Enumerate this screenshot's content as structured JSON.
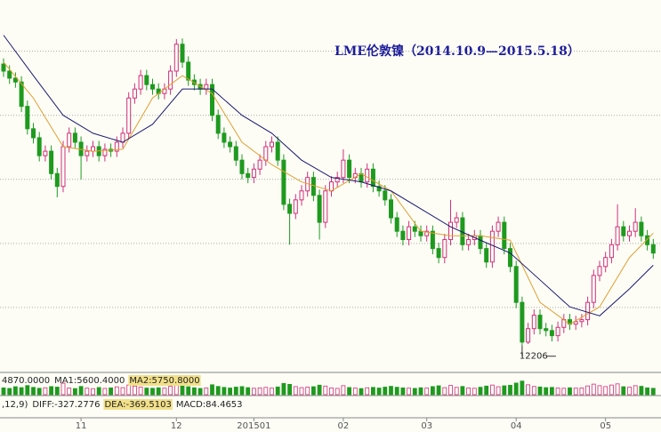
{
  "chart_data": {
    "type": "candlestick",
    "title": "LME伦敦镍（2014.10.9—2015.5.18）",
    "open": [
      16600,
      16490,
      16380,
      16320,
      15940,
      15590,
      15450,
      15170,
      15240,
      14890,
      14690,
      15310,
      15520,
      15380,
      15170,
      15240,
      15310,
      15170,
      15270,
      15240,
      15380,
      15520,
      16070,
      16210,
      16420,
      16280,
      16210,
      16140,
      16210,
      16490,
      16910,
      16630,
      16350,
      16280,
      16210,
      16280,
      15800,
      15520,
      15380,
      15310,
      15100,
      14890,
      14830,
      14960,
      15100,
      15310,
      15380,
      15100,
      14410,
      14270,
      14480,
      14620,
      14830,
      14550,
      14130,
      14620,
      14760,
      14830,
      15100,
      14830,
      14890,
      14760,
      14960,
      14690,
      14620,
      14480,
      14200,
      13990,
      13860,
      14060,
      13990,
      13920,
      13990,
      13720,
      13580,
      13860,
      14130,
      14200,
      13780,
      13860,
      13920,
      13720,
      13510,
      13990,
      14130,
      13720,
      13440,
      12880,
      12260,
      12470,
      12680,
      12470,
      12440,
      12360,
      12490,
      12610,
      12540,
      12580,
      12610,
      12880,
      13300,
      13440,
      13580,
      13780,
      14060,
      13920,
      13990,
      14130,
      13920,
      13780
    ],
    "high": [
      16690,
      16580,
      16470,
      16410,
      16030,
      15680,
      15540,
      15330,
      15330,
      14980,
      15400,
      15610,
      15610,
      15470,
      15330,
      15400,
      15400,
      15360,
      15360,
      15470,
      15610,
      16160,
      16300,
      16510,
      16510,
      16370,
      16300,
      16300,
      16580,
      16990,
      17000,
      16720,
      16440,
      16370,
      16370,
      16370,
      15890,
      15610,
      15470,
      15400,
      15190,
      14980,
      15050,
      15190,
      15400,
      15470,
      15470,
      15190,
      14500,
      14570,
      14710,
      14920,
      14920,
      14640,
      14710,
      14850,
      14920,
      15270,
      15190,
      14980,
      14980,
      15050,
      15050,
      14780,
      14710,
      14570,
      14290,
      14080,
      14150,
      14150,
      14080,
      14080,
      14080,
      13810,
      13950,
      14480,
      14290,
      14290,
      13950,
      14010,
      14010,
      13810,
      14080,
      14220,
      14220,
      13810,
      13530,
      12970,
      12560,
      12770,
      12770,
      12560,
      12530,
      12580,
      12700,
      12700,
      12670,
      12700,
      12970,
      13390,
      13530,
      13670,
      13870,
      14410,
      14150,
      14080,
      14350,
      14220,
      14010,
      13870
    ],
    "low": [
      16400,
      16290,
      16230,
      15850,
      15500,
      15360,
      15080,
      15080,
      14800,
      14520,
      14600,
      15220,
      15290,
      14800,
      15080,
      15150,
      15080,
      15080,
      15150,
      15150,
      15290,
      15430,
      15980,
      16120,
      16190,
      16120,
      16050,
      16050,
      16120,
      16400,
      16540,
      16260,
      16190,
      16120,
      16120,
      15710,
      15430,
      15290,
      15220,
      15010,
      14800,
      14740,
      14740,
      14870,
      15010,
      15220,
      15010,
      14320,
      13780,
      14180,
      14390,
      14530,
      14460,
      13860,
      14040,
      14530,
      14670,
      14740,
      14740,
      14740,
      14670,
      14670,
      14600,
      14530,
      14390,
      14110,
      13900,
      13770,
      13770,
      13900,
      13830,
      13830,
      13630,
      13490,
      13490,
      13770,
      14040,
      13690,
      13690,
      13770,
      13630,
      13420,
      13420,
      13900,
      13630,
      13350,
      12790,
      12206,
      12230,
      12380,
      12380,
      12350,
      12270,
      12270,
      12400,
      12450,
      12450,
      12490,
      12520,
      12790,
      13210,
      13350,
      13490,
      13690,
      13830,
      13830,
      13900,
      13830,
      13690,
      13560
    ],
    "close": [
      16490,
      16380,
      16320,
      15940,
      15590,
      15450,
      15170,
      15240,
      14890,
      14690,
      15310,
      15520,
      15380,
      15170,
      15240,
      15310,
      15170,
      15270,
      15240,
      15380,
      15520,
      16070,
      16210,
      16420,
      16280,
      16210,
      16140,
      16210,
      16490,
      16910,
      16630,
      16350,
      16280,
      16210,
      16280,
      15800,
      15520,
      15380,
      15310,
      15100,
      14890,
      14830,
      14960,
      15100,
      15310,
      15380,
      15100,
      14410,
      14270,
      14480,
      14620,
      14830,
      14550,
      14130,
      14620,
      14760,
      14830,
      15100,
      14830,
      14890,
      14760,
      14960,
      14690,
      14620,
      14480,
      14200,
      13990,
      13860,
      14060,
      13990,
      13920,
      13990,
      13720,
      13580,
      13860,
      14130,
      14200,
      13780,
      13860,
      13920,
      13720,
      13510,
      13990,
      14130,
      13720,
      13440,
      12880,
      12260,
      12470,
      12680,
      12470,
      12440,
      12360,
      12490,
      12610,
      12540,
      12580,
      12610,
      12880,
      13300,
      13440,
      13580,
      13780,
      14060,
      13920,
      13990,
      14130,
      13920,
      13780,
      13650
    ],
    "up_color": "#d0307a",
    "down_color": "#1e9a1e",
    "ylim": [
      11800,
      17600
    ],
    "yticks": [
      12800,
      13800,
      14800,
      15800,
      16800
    ],
    "grid": true,
    "xticks": [
      {
        "value": 13,
        "label": "11"
      },
      {
        "value": 29,
        "label": "12"
      },
      {
        "value": 42,
        "label": "201501"
      },
      {
        "value": 57,
        "label": "02"
      },
      {
        "value": 71,
        "label": "03"
      },
      {
        "value": 86,
        "label": "04"
      },
      {
        "value": 101,
        "label": "05"
      }
    ],
    "annotation": {
      "value": 12206,
      "index": 87
    },
    "moving_averages": {
      "x": [
        0,
        5,
        10,
        15,
        20,
        25,
        30,
        35,
        40,
        45,
        50,
        55,
        60,
        65,
        70,
        75,
        80,
        85,
        90,
        95,
        100,
        105,
        109
      ],
      "series": [
        {
          "color": "#e0a030",
          "values": [
            16630,
            16070,
            15310,
            15240,
            15270,
            16070,
            16420,
            16140,
            15380,
            15030,
            14760,
            14620,
            14890,
            14620,
            13990,
            13920,
            13920,
            13850,
            12880,
            12540,
            12810,
            13580,
            13960
          ]
        },
        {
          "color": "#1a1a70",
          "values": [
            17050,
            16420,
            15800,
            15520,
            15380,
            15660,
            16210,
            16210,
            15800,
            15520,
            15100,
            14830,
            14760,
            14620,
            14340,
            14060,
            13850,
            13650,
            13230,
            12810,
            12670,
            13090,
            13460
          ]
        }
      ]
    },
    "volume": {
      "ylim": [
        0,
        15000
      ],
      "values": [
        5200,
        4800,
        6100,
        5400,
        7000,
        5600,
        4900,
        5300,
        6200,
        5800,
        8800,
        5100,
        4700,
        6300,
        5000,
        4600,
        5500,
        4800,
        5200,
        6000,
        5400,
        7400,
        6600,
        5900,
        5100,
        4900,
        5300,
        5000,
        6400,
        9800,
        7200,
        6100,
        5300,
        4800,
        5200,
        7600,
        6300,
        5600,
        5100,
        5800,
        6200,
        5400,
        4900,
        5200,
        5600,
        5100,
        5900,
        8600,
        7900,
        6200,
        5400,
        5800,
        6100,
        7300,
        6600,
        5200,
        4800,
        6900,
        5500,
        5100,
        4700,
        5300,
        5600,
        5100,
        5800,
        6400,
        5700,
        5200,
        5000,
        4800,
        5300,
        5100,
        6200,
        6800,
        5400,
        7100,
        5600,
        6300,
        5200,
        4900,
        5700,
        6600,
        7400,
        6100,
        6800,
        7200,
        8900,
        10400,
        7600,
        6300,
        5900,
        5400,
        5600,
        5100,
        4900,
        5300,
        5000,
        5200,
        6700,
        8100,
        6900,
        6200,
        7400,
        8300,
        6100,
        5800,
        6900,
        6400,
        5200,
        4870
      ]
    },
    "volume_info": [
      "4870.0000",
      "MA1:5600.4000",
      "MA2:5750.8000"
    ],
    "macd_info": [
      ",12,9)",
      "DIFF:-327.2776",
      "DEA:-369.5103",
      "MACD:84.4653"
    ]
  }
}
